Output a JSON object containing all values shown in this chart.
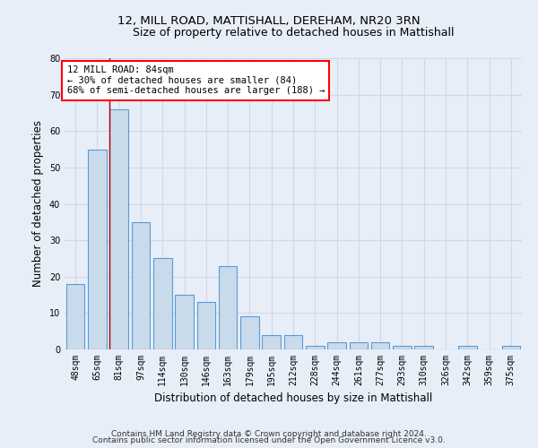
{
  "title": "12, MILL ROAD, MATTISHALL, DEREHAM, NR20 3RN",
  "subtitle": "Size of property relative to detached houses in Mattishall",
  "xlabel": "Distribution of detached houses by size in Mattishall",
  "ylabel": "Number of detached properties",
  "categories": [
    "48sqm",
    "65sqm",
    "81sqm",
    "97sqm",
    "114sqm",
    "130sqm",
    "146sqm",
    "163sqm",
    "179sqm",
    "195sqm",
    "212sqm",
    "228sqm",
    "244sqm",
    "261sqm",
    "277sqm",
    "293sqm",
    "310sqm",
    "326sqm",
    "342sqm",
    "359sqm",
    "375sqm"
  ],
  "values": [
    18,
    55,
    66,
    35,
    25,
    15,
    13,
    23,
    9,
    4,
    4,
    1,
    2,
    2,
    2,
    1,
    1,
    0,
    1,
    0,
    1
  ],
  "bar_color": "#c9daea",
  "bar_edge_color": "#5b9bd5",
  "red_line_bar_index": 2,
  "annotation_line1": "12 MILL ROAD: 84sqm",
  "annotation_line2": "← 30% of detached houses are smaller (84)",
  "annotation_line3": "68% of semi-detached houses are larger (188) →",
  "annotation_box_color": "white",
  "annotation_box_edge": "red",
  "ylim": [
    0,
    80
  ],
  "yticks": [
    0,
    10,
    20,
    30,
    40,
    50,
    60,
    70,
    80
  ],
  "bg_color": "#e8eef8",
  "plot_bg_color": "#e8eef8",
  "grid_color": "#d0d8e8",
  "footer_line1": "Contains HM Land Registry data © Crown copyright and database right 2024.",
  "footer_line2": "Contains public sector information licensed under the Open Government Licence v3.0.",
  "title_fontsize": 9.5,
  "subtitle_fontsize": 9,
  "axis_label_fontsize": 8.5,
  "tick_fontsize": 7,
  "annotation_fontsize": 7.5,
  "footer_fontsize": 6.5
}
